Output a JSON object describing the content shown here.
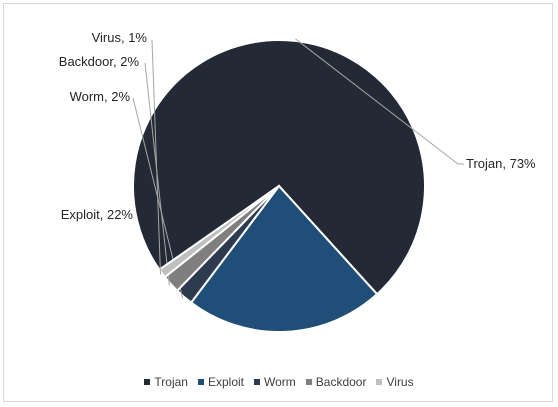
{
  "chart_data": {
    "type": "pie",
    "title": "",
    "slices": [
      {
        "label": "Trojan",
        "value": 73,
        "color": "#232a36",
        "data_label": "Trojan, 73%"
      },
      {
        "label": "Exploit",
        "value": 22,
        "color": "#1f4e79",
        "data_label": "Exploit, 22%"
      },
      {
        "label": "Worm",
        "value": 2,
        "color": "#2d3a4f",
        "data_label": "Worm, 2%"
      },
      {
        "label": "Backdoor",
        "value": 2,
        "color": "#7f7f7f",
        "data_label": "Backdoor, 2%"
      },
      {
        "label": "Virus",
        "value": 1,
        "color": "#bfbfbf",
        "data_label": "Virus, 1%"
      }
    ],
    "legend_position": "bottom"
  },
  "legend": {
    "items": [
      "Trojan",
      "Exploit",
      "Worm",
      "Backdoor",
      "Virus"
    ]
  }
}
